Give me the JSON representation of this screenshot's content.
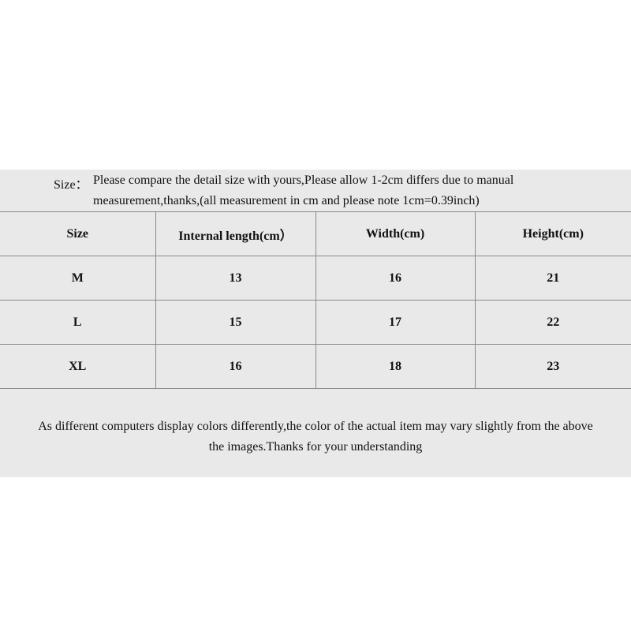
{
  "intro": {
    "label": "Size：",
    "lines": [
      "Please compare the detail size with yours,Please allow 1-2cm differs due to manual",
      "measurement,thanks,(all measurement in cm and please note 1cm=0.39inch)"
    ]
  },
  "table": {
    "header": [
      "Size",
      "Internal length(cm）",
      "Width(cm)",
      "Height(cm)"
    ],
    "rows": [
      [
        "M",
        "13",
        "16",
        "21"
      ],
      [
        "L",
        "15",
        "17",
        "22"
      ],
      [
        "XL",
        "16",
        "18",
        "23"
      ]
    ]
  },
  "footer": {
    "lines": [
      "As different computers display colors differently,the color of the actual item may vary slightly from the above",
      "the images.Thanks for your understanding"
    ]
  }
}
